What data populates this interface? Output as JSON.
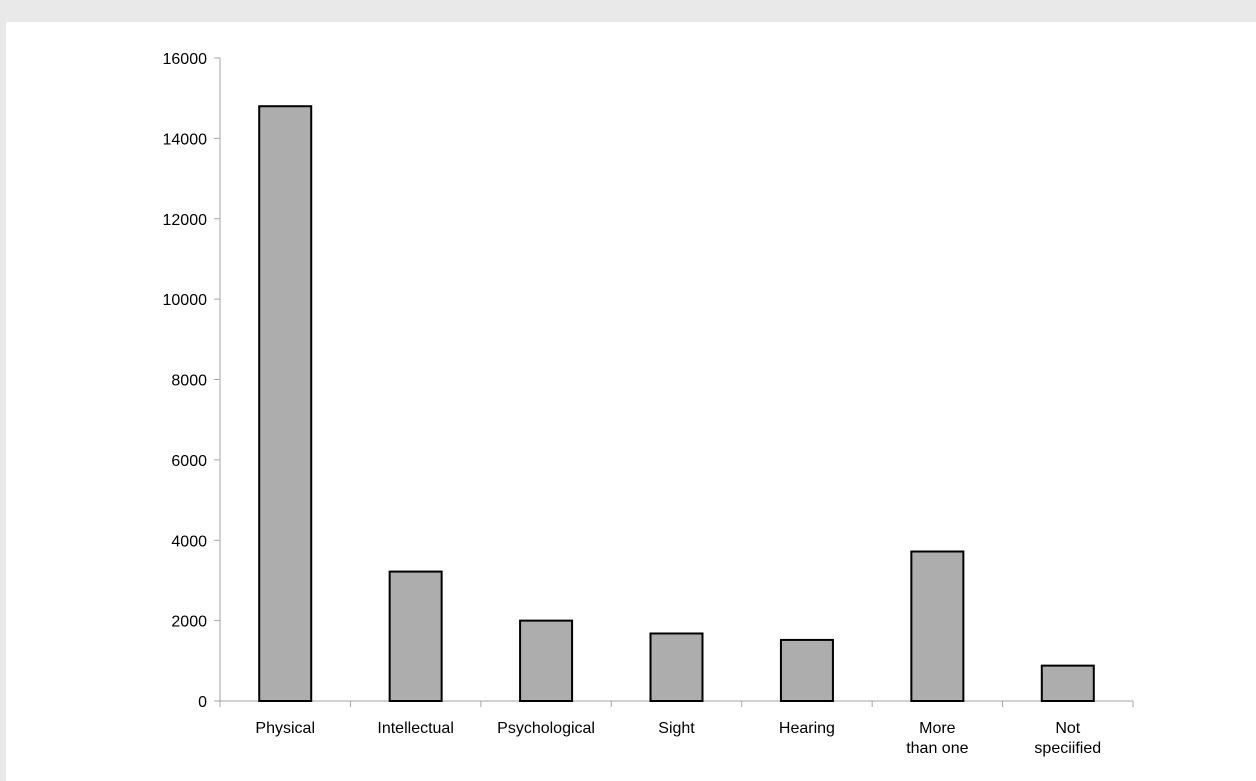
{
  "chart_data": {
    "type": "bar",
    "categories": [
      [
        "Physical"
      ],
      [
        "Intellectual"
      ],
      [
        "Psychological"
      ],
      [
        "Sight"
      ],
      [
        "Hearing"
      ],
      [
        "More",
        "than one"
      ],
      [
        "Not",
        "speciified"
      ]
    ],
    "values": [
      14800,
      3220,
      2000,
      1680,
      1520,
      3720,
      880
    ],
    "ylim": [
      0,
      16000
    ],
    "yticks": [
      0,
      2000,
      4000,
      6000,
      8000,
      10000,
      12000,
      14000,
      16000
    ],
    "title": "",
    "xlabel": "",
    "ylabel": "",
    "legend": "none",
    "grid": false,
    "colors": {
      "bar_fill": "#adadad",
      "bar_stroke": "#000000",
      "axis": "#a6a6a6",
      "page_background": "#e9e9e9",
      "panel_background": "#ffffff"
    }
  }
}
